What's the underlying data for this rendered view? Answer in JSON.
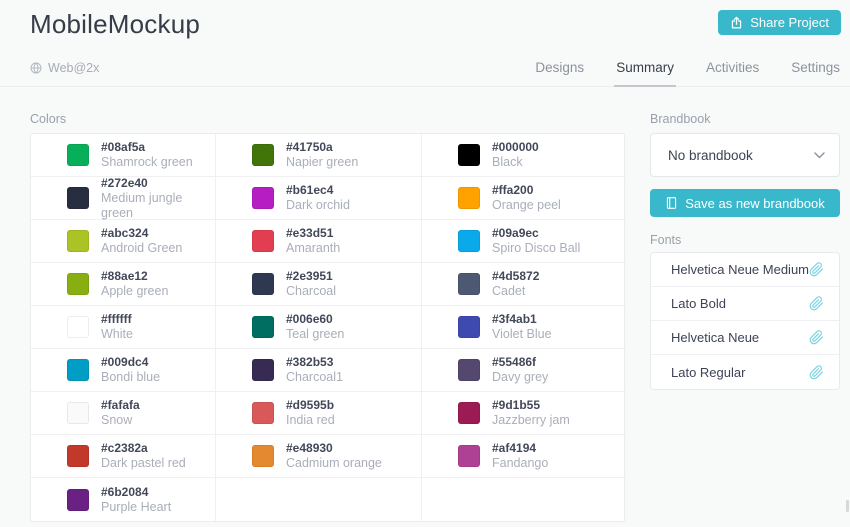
{
  "header": {
    "title": "MobileMockup",
    "share_button": "Share Project"
  },
  "subheader": {
    "design_name": "Web@2x",
    "tabs": [
      {
        "label": "Designs",
        "active": false
      },
      {
        "label": "Summary",
        "active": true
      },
      {
        "label": "Activities",
        "active": false
      },
      {
        "label": "Settings",
        "active": false
      }
    ]
  },
  "colors_section": {
    "label": "Colors",
    "items": [
      {
        "hex": "#08af5a",
        "name": "Shamrock green"
      },
      {
        "hex": "#41750a",
        "name": "Napier green"
      },
      {
        "hex": "#000000",
        "name": "Black"
      },
      {
        "hex": "#272e40",
        "name": "Medium jungle green"
      },
      {
        "hex": "#b61ec4",
        "name": "Dark orchid"
      },
      {
        "hex": "#ffa200",
        "name": "Orange peel"
      },
      {
        "hex": "#abc324",
        "name": "Android Green"
      },
      {
        "hex": "#e33d51",
        "name": "Amaranth"
      },
      {
        "hex": "#09a9ec",
        "name": "Spiro Disco Ball"
      },
      {
        "hex": "#88ae12",
        "name": "Apple green"
      },
      {
        "hex": "#2e3951",
        "name": "Charcoal"
      },
      {
        "hex": "#4d5872",
        "name": "Cadet"
      },
      {
        "hex": "#ffffff",
        "name": "White"
      },
      {
        "hex": "#006e60",
        "name": "Teal green"
      },
      {
        "hex": "#3f4ab1",
        "name": "Violet Blue"
      },
      {
        "hex": "#009dc4",
        "name": "Bondi blue"
      },
      {
        "hex": "#382b53",
        "name": "Charcoal1"
      },
      {
        "hex": "#55486f",
        "name": "Davy grey"
      },
      {
        "hex": "#fafafa",
        "name": "Snow"
      },
      {
        "hex": "#d9595b",
        "name": "India red"
      },
      {
        "hex": "#9d1b55",
        "name": "Jazzberry jam"
      },
      {
        "hex": "#c2382a",
        "name": "Dark pastel red"
      },
      {
        "hex": "#e48930",
        "name": "Cadmium orange"
      },
      {
        "hex": "#af4194",
        "name": "Fandango"
      },
      {
        "hex": "#6b2084",
        "name": "Purple Heart"
      }
    ]
  },
  "sidebar": {
    "brandbook_label": "Brandbook",
    "brandbook_value": "No brandbook",
    "save_button": "Save as new brandbook",
    "fonts_label": "Fonts",
    "fonts": [
      "Helvetica Neue Medium",
      "Lato Bold",
      "Helvetica Neue",
      "Lato Regular"
    ]
  },
  "theme": {
    "accent": "#3ab8cb",
    "paperclip_icon": "#7fd4e3"
  }
}
